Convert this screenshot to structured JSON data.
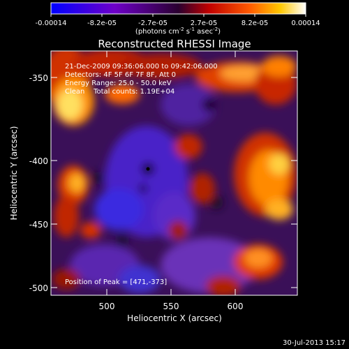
{
  "colorbar": {
    "tick_labels": [
      "-0.00014",
      "-8.2e-05",
      "-2.7e-05",
      "2.7e-05",
      "8.2e-05",
      "0.00014"
    ],
    "units_main": "(photons cm",
    "units_exp1": "-2",
    "units_mid": " s",
    "units_exp2": "-1",
    "units_end": " asec",
    "units_exp3": "-2",
    "units_close": ")"
  },
  "plot": {
    "title": "Reconstructed RHESSI Image",
    "xlabel": "Heliocentric X (arcsec)",
    "ylabel": "Heliocentric Y (arcsec)",
    "x_ticks": [
      "500",
      "550",
      "600"
    ],
    "y_ticks": [
      "-350",
      "-400",
      "-450",
      "-500"
    ]
  },
  "annotations": {
    "line1": "21-Dec-2009 09:36:06.000 to 09:42:06.000",
    "line2": "Detectors: 4F 5F 6F 7F 8F, Att 0",
    "line3": "Energy Range: 25.0 - 50.0 keV",
    "line4": "Clean    Total counts: 1.19E+04",
    "peak": "Position of Peak = [471,-373]"
  },
  "footer": {
    "timestamp": "30-Jul-2013 15:17"
  }
}
